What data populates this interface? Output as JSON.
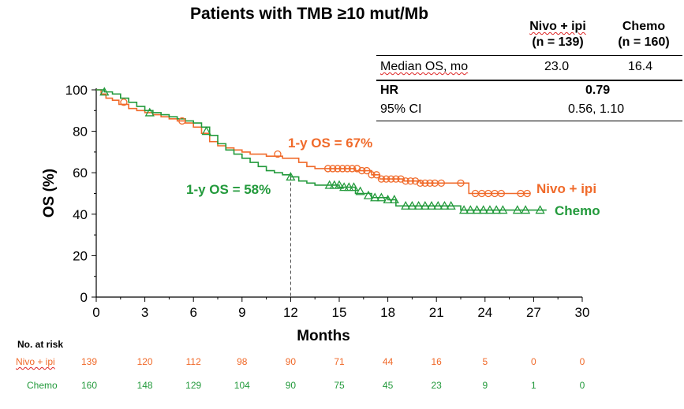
{
  "chart_data": {
    "type": "line",
    "title": "Patients with TMB ≥10 mut/Mb",
    "xlabel": "Months",
    "ylabel": "OS (%)",
    "xlim": [
      0,
      30
    ],
    "ylim": [
      0,
      100
    ],
    "xticks": [
      "0",
      "3",
      "6",
      "9",
      "12",
      "15",
      "18",
      "21",
      "24",
      "27",
      "30"
    ],
    "yticks": [
      "0",
      "20",
      "40",
      "60",
      "80",
      "100"
    ],
    "colors": {
      "nivo": "#f06a2a",
      "chemo": "#239a3c"
    },
    "series": [
      {
        "name": "Nivo + ipi",
        "color": "#f06a2a",
        "marker": "circle",
        "x": [
          0,
          0.3,
          0.6,
          1.0,
          1.4,
          2.0,
          2.5,
          3.0,
          3.5,
          4.0,
          4.5,
          5.0,
          5.5,
          6.0,
          6.5,
          7.0,
          7.5,
          8.0,
          8.5,
          9.0,
          9.5,
          10.0,
          10.5,
          11.0,
          11.5,
          12.0,
          12.5,
          13.0,
          13.5,
          14.0,
          14.5,
          15.0,
          16.0,
          17.0,
          17.5,
          18.0,
          19.0,
          20.0,
          21.0,
          22.0,
          22.9,
          23.0,
          23.2,
          24.0,
          25.0,
          26.0,
          26.8
        ],
        "y": [
          100,
          98,
          96,
          95,
          93,
          91,
          90,
          89,
          88,
          87,
          86,
          85,
          84,
          82,
          79,
          75,
          73,
          72,
          71,
          70,
          69,
          69,
          68,
          68,
          67,
          67,
          65,
          63,
          62,
          62,
          62,
          62,
          61,
          59,
          57,
          57,
          56,
          55,
          55,
          55,
          55,
          50,
          50,
          50,
          50,
          50,
          50
        ]
      },
      {
        "name": "Chemo",
        "color": "#239a3c",
        "marker": "triangle",
        "x": [
          0,
          0.5,
          1.0,
          1.5,
          2.0,
          2.5,
          3.0,
          3.5,
          4.0,
          4.5,
          5.0,
          5.5,
          6.0,
          6.5,
          7.0,
          7.5,
          8.0,
          8.5,
          9.0,
          9.5,
          10.0,
          10.5,
          11.0,
          11.5,
          12.0,
          12.5,
          13.0,
          13.5,
          14.0,
          15.0,
          16.0,
          17.0,
          18.0,
          18.5,
          19.0,
          20.0,
          21.0,
          22.0,
          22.5,
          23.0,
          24.0,
          25.0,
          26.0,
          27.0,
          27.8
        ],
        "y": [
          100,
          99,
          98,
          96,
          94,
          92,
          90,
          89,
          88,
          87,
          86,
          85,
          84,
          82,
          78,
          74,
          71,
          69,
          67,
          65,
          63,
          61,
          60,
          59,
          58,
          56,
          55,
          54,
          54,
          53,
          50,
          48,
          47,
          44,
          44,
          44,
          44,
          44,
          42,
          42,
          42,
          42,
          42,
          42,
          42
        ]
      }
    ],
    "censor_marks": {
      "nivo_x": [
        1.7,
        5.3,
        11.2,
        14.3,
        14.6,
        14.9,
        15.2,
        15.5,
        15.8,
        16.1,
        16.4,
        16.7,
        17.0,
        17.3,
        17.6,
        17.9,
        18.2,
        18.5,
        18.8,
        19.1,
        19.4,
        19.7,
        20.0,
        20.3,
        20.6,
        20.9,
        21.3,
        22.5,
        23.4,
        23.8,
        24.2,
        24.6,
        25.0,
        26.2,
        26.6
      ],
      "nivo_y": [
        94,
        85,
        69,
        62,
        62,
        62,
        62,
        62,
        62,
        62,
        61,
        61,
        59,
        59,
        57,
        57,
        57,
        57,
        57,
        56,
        56,
        56,
        55,
        55,
        55,
        55,
        55,
        55,
        50,
        50,
        50,
        50,
        50,
        50,
        50
      ],
      "chemo_x": [
        0.5,
        3.3,
        6.8,
        12.0,
        14.4,
        14.7,
        15.0,
        15.3,
        15.6,
        15.9,
        16.3,
        16.8,
        17.2,
        17.6,
        18.0,
        18.4,
        19.1,
        19.5,
        19.9,
        20.3,
        20.7,
        21.1,
        21.5,
        21.9,
        22.7,
        23.1,
        23.5,
        23.9,
        24.3,
        24.7,
        25.1,
        26.0,
        26.5,
        27.4
      ],
      "chemo_y": [
        99,
        89,
        80,
        58,
        54,
        54,
        54,
        53,
        53,
        53,
        51,
        49,
        48,
        48,
        47,
        47,
        44,
        44,
        44,
        44,
        44,
        44,
        44,
        44,
        42,
        42,
        42,
        42,
        42,
        42,
        42,
        42,
        42,
        42
      ]
    },
    "annotations": {
      "nivo_1y": "1-y OS = 67%",
      "chemo_1y": "1-y OS = 58%",
      "nivo_label": "Nivo + ipi",
      "chemo_label": "Chemo",
      "reference_month": 12
    }
  },
  "table": {
    "col1_header_line1": "Nivo + ipi",
    "col1_header_line2": "(n = 139)",
    "col2_header_line1": "Chemo",
    "col2_header_line2": "(n = 160)",
    "row1_label": "Median OS, mo",
    "row1_val1": "23.0",
    "row1_val2": "16.4",
    "row2_label": "HR",
    "row2_val": "0.79",
    "row3_label": "95% CI",
    "row3_val": "0.56, 1.10"
  },
  "risk_table": {
    "title": "No. at risk",
    "rows": [
      {
        "label": "Nivo + ipi",
        "values": [
          "139",
          "120",
          "112",
          "98",
          "90",
          "71",
          "44",
          "16",
          "5",
          "0",
          "0"
        ]
      },
      {
        "label": "Chemo",
        "values": [
          "160",
          "148",
          "129",
          "104",
          "90",
          "75",
          "45",
          "23",
          "9",
          "1",
          "0"
        ]
      }
    ]
  }
}
